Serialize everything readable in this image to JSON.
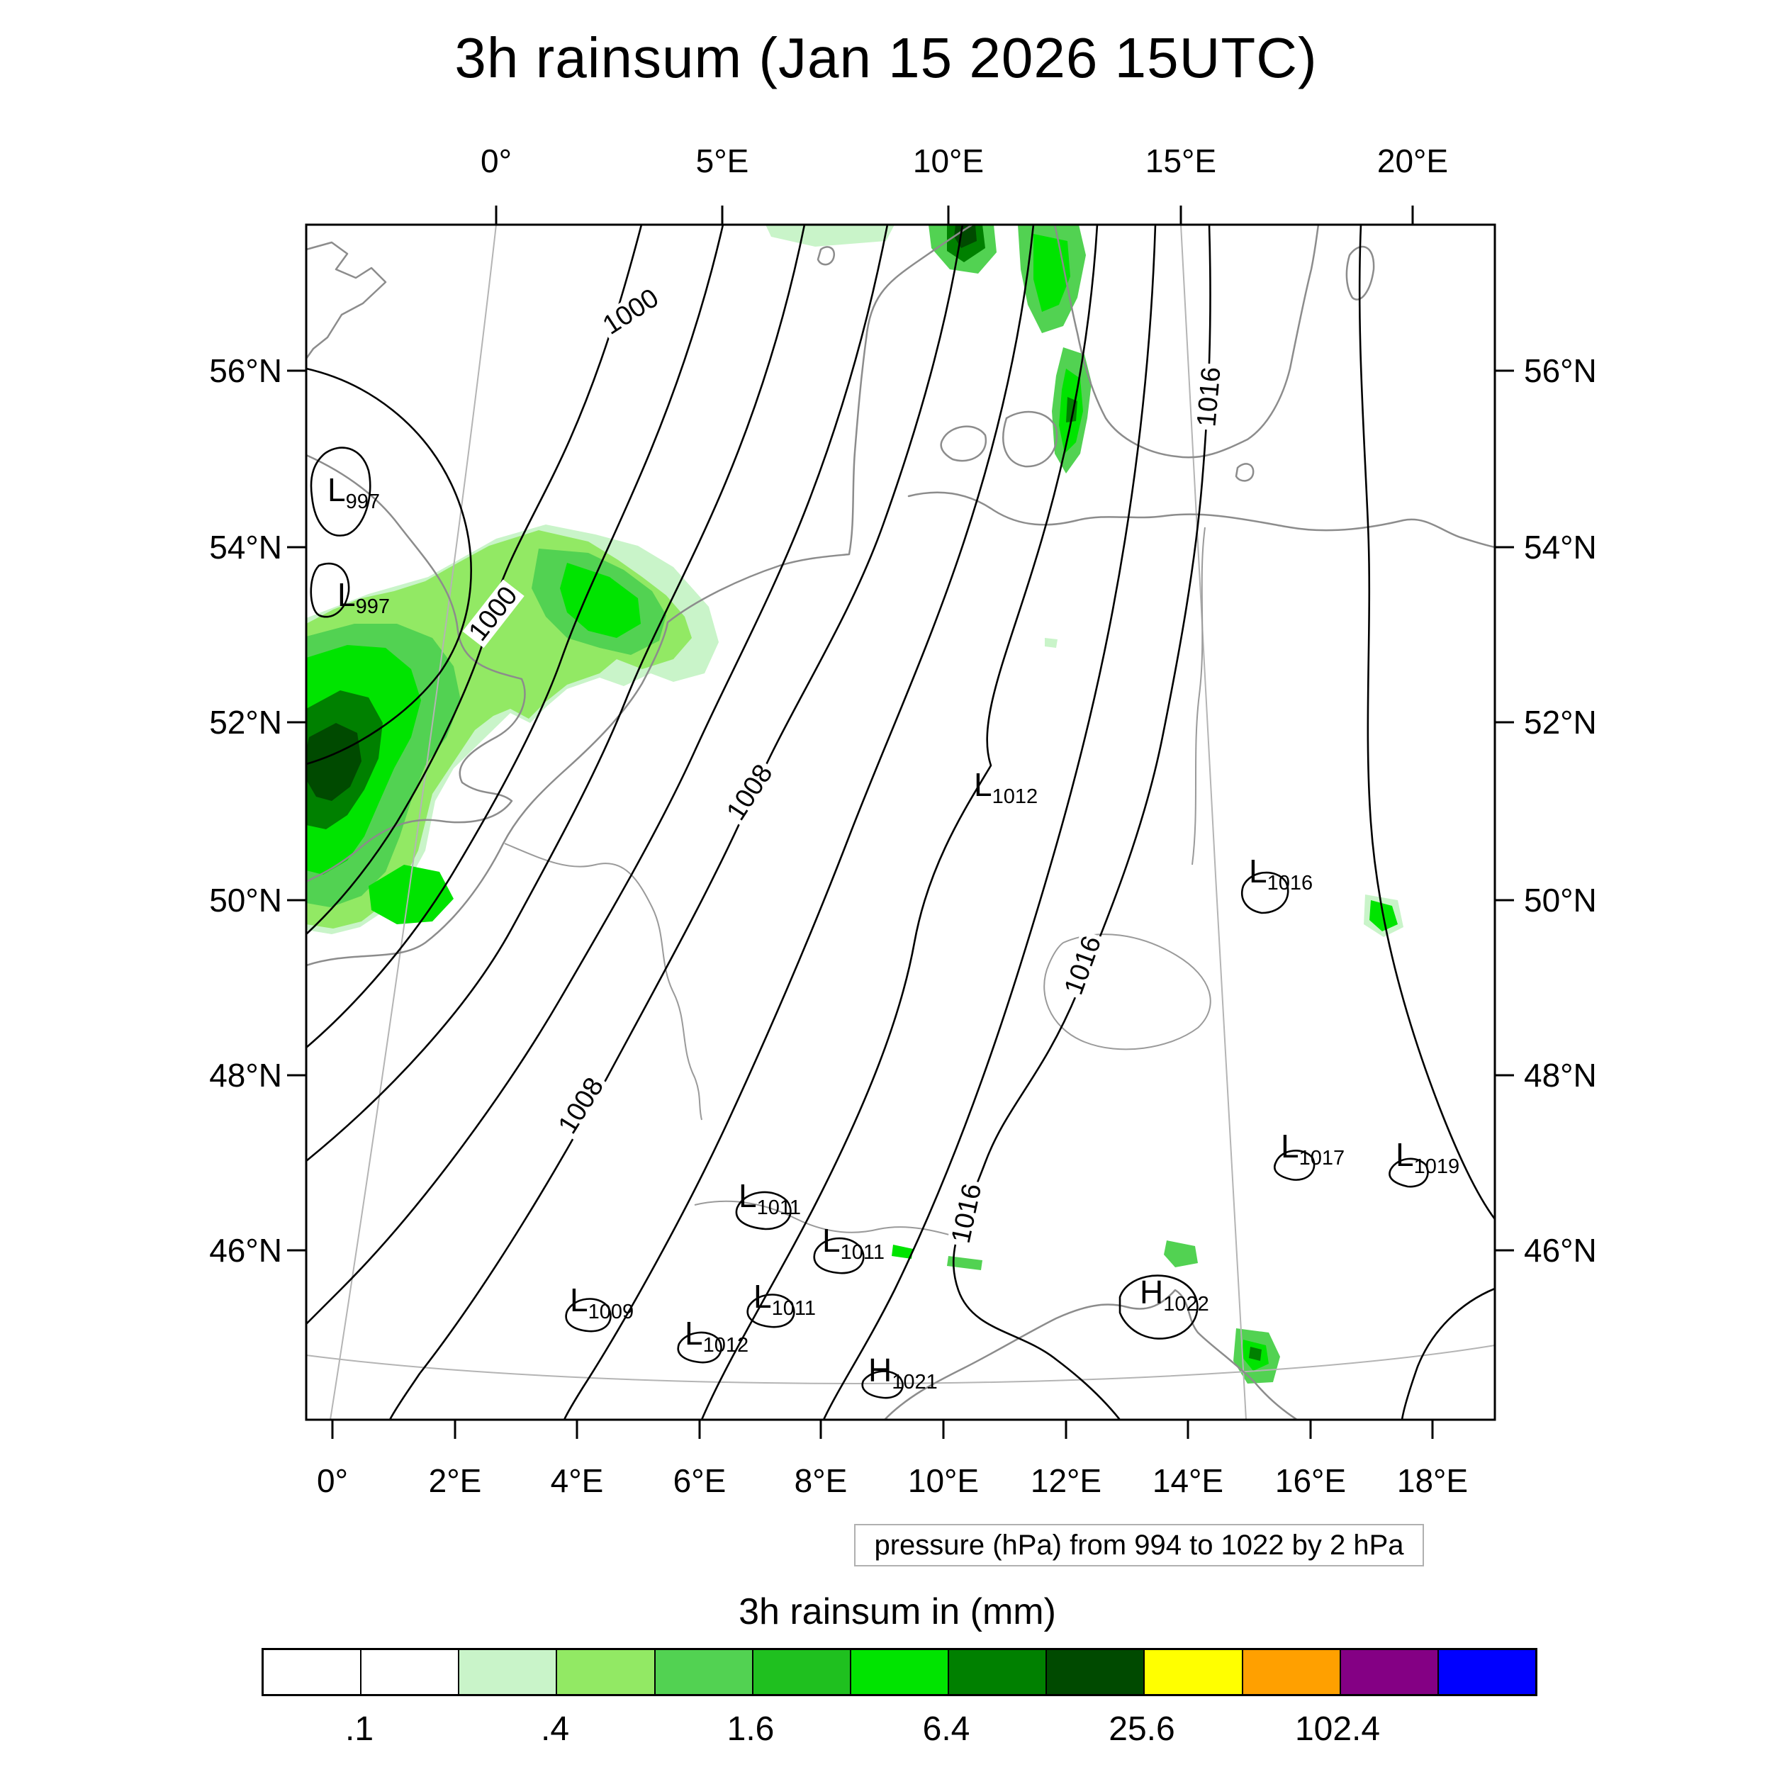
{
  "title": "3h rainsum (Jan 15 2026 15UTC)",
  "axes": {
    "top": [
      "0°",
      "5°E",
      "10°E",
      "15°E",
      "20°E"
    ],
    "bottom": [
      "0°",
      "2°E",
      "4°E",
      "6°E",
      "8°E",
      "10°E",
      "12°E",
      "14°E",
      "16°E",
      "18°E"
    ],
    "left": [
      "56°N",
      "54°N",
      "52°N",
      "50°N",
      "48°N",
      "46°N"
    ],
    "right": [
      "56°N",
      "54°N",
      "52°N",
      "50°N",
      "48°N",
      "46°N"
    ]
  },
  "isobar_labels": [
    "1000",
    "1000",
    "1008",
    "1008",
    "1016",
    "1016",
    "1016"
  ],
  "systems": [
    {
      "type": "L",
      "value": "997"
    },
    {
      "type": "L",
      "value": "997"
    },
    {
      "type": "L",
      "value": "1012"
    },
    {
      "type": "L",
      "value": "1016"
    },
    {
      "type": "L",
      "value": "1011"
    },
    {
      "type": "L",
      "value": "1011"
    },
    {
      "type": "L",
      "value": "1011"
    },
    {
      "type": "L",
      "value": "1009"
    },
    {
      "type": "L",
      "value": "1012"
    },
    {
      "type": "L",
      "value": "1017"
    },
    {
      "type": "L",
      "value": "1019"
    },
    {
      "type": "H",
      "value": "1022"
    },
    {
      "type": "H",
      "value": "1021"
    }
  ],
  "caption": "pressure (hPa) from 994 to 1022 by 2 hPa",
  "colorbar": {
    "title": "3h rainsum in (mm)",
    "tick_labels": [
      ".1",
      ".4",
      "1.6",
      "6.4",
      "25.6",
      "102.4"
    ],
    "colors": [
      "#ffffff",
      "#ffffff",
      "#c9f4c9",
      "#92e964",
      "#52d252",
      "#1fc01f",
      "#00e400",
      "#008000",
      "#004a00",
      "#ffff00",
      "#ffa000",
      "#840084",
      "#0000ff"
    ]
  }
}
